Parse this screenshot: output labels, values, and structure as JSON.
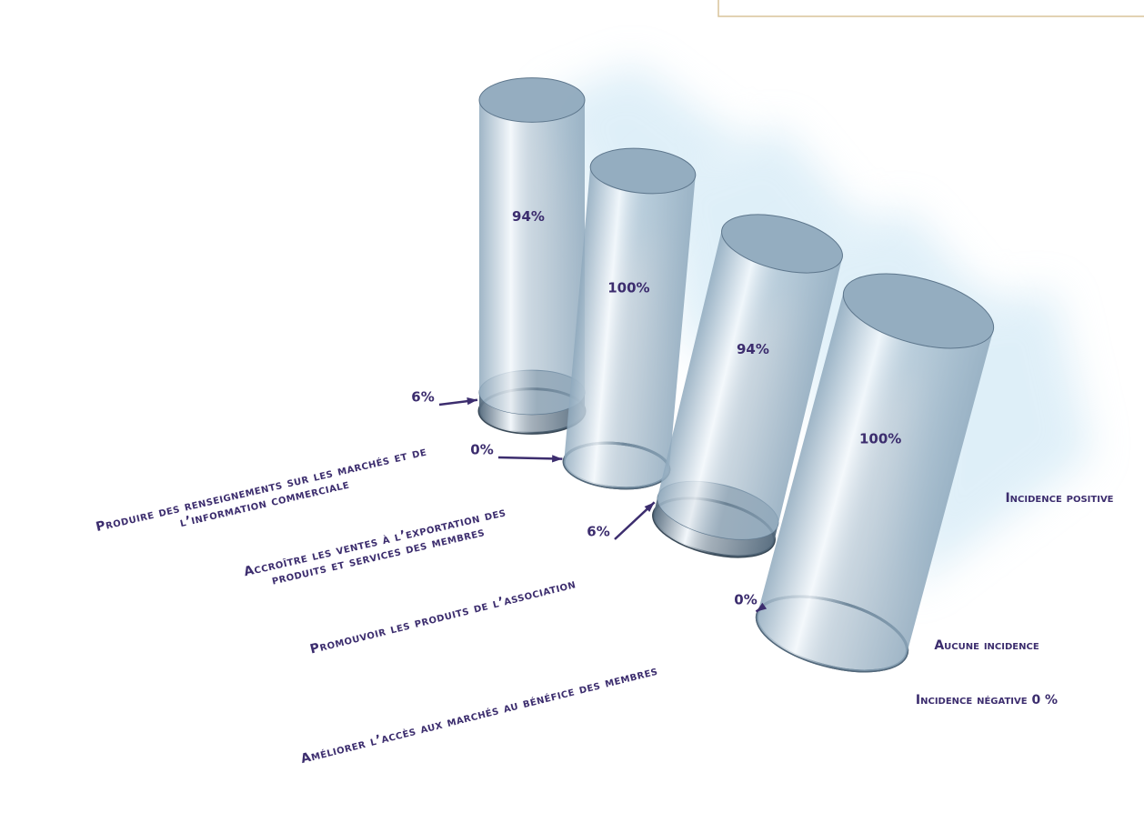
{
  "chart_data": {
    "type": "bar",
    "categories": [
      "Produire des renseignements sur les marchés et de l’information commerciale",
      "Accroître les ventes à l’exportation des produits et services des membres",
      "Promouvoir les produits de l’association",
      "Améliorer l’accès aux marchés au bénéfice des membres"
    ],
    "series": [
      {
        "name": "Incidence positive",
        "color": "#8fa9bd",
        "values": [
          94,
          100,
          94,
          100
        ],
        "value_labels": [
          "94%",
          "100%",
          "94%",
          "100%"
        ]
      },
      {
        "name": "Aucune incidence",
        "color": "#52687b",
        "values": [
          6,
          0,
          6,
          0
        ],
        "value_labels": [
          "6%",
          "0%",
          "6%",
          "0%"
        ]
      },
      {
        "name": "Incidence négative 0 %",
        "color": "#3a4a58",
        "values": [
          0,
          0,
          0,
          0
        ]
      }
    ]
  }
}
